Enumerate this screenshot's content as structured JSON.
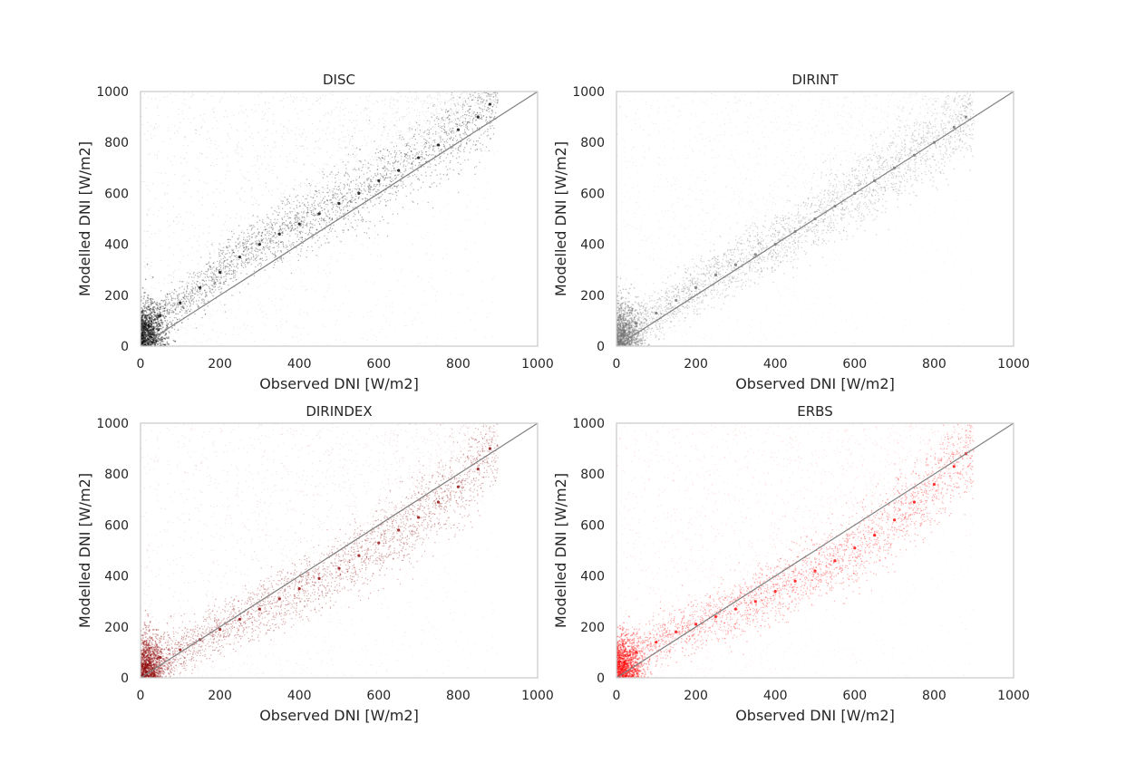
{
  "chart_data": [
    {
      "type": "scatter",
      "title": "DISC",
      "xlabel": "Observed DNI [W/m2]",
      "ylabel": "Modelled DNI [W/m2]",
      "xlim": [
        0,
        1000
      ],
      "ylim": [
        0,
        1000
      ],
      "xticks": [
        "0",
        "200",
        "400",
        "600",
        "800",
        "1000"
      ],
      "yticks": [
        "0",
        "200",
        "400",
        "600",
        "800",
        "1000"
      ],
      "color": "#000000",
      "grid": false,
      "reference_line": {
        "x": [
          0,
          1000
        ],
        "y": [
          0,
          1000
        ],
        "color": "#808080"
      },
      "series": [
        {
          "points": [
            [
              20,
              80
            ],
            [
              50,
              120
            ],
            [
              100,
              170
            ],
            [
              150,
              230
            ],
            [
              200,
              290
            ],
            [
              250,
              350
            ],
            [
              300,
              400
            ],
            [
              350,
              440
            ],
            [
              400,
              480
            ],
            [
              450,
              520
            ],
            [
              500,
              560
            ],
            [
              550,
              600
            ],
            [
              600,
              650
            ],
            [
              650,
              690
            ],
            [
              700,
              740
            ],
            [
              750,
              790
            ],
            [
              800,
              850
            ],
            [
              850,
              900
            ],
            [
              880,
              950
            ]
          ]
        }
      ]
    },
    {
      "type": "scatter",
      "title": "DIRINT",
      "xlabel": "Observed DNI [W/m2]",
      "ylabel": "Modelled DNI [W/m2]",
      "xlim": [
        0,
        1000
      ],
      "ylim": [
        0,
        1000
      ],
      "xticks": [
        "0",
        "200",
        "400",
        "600",
        "800",
        "1000"
      ],
      "yticks": [
        "0",
        "200",
        "400",
        "600",
        "800",
        "1000"
      ],
      "color": "#6e6e6e",
      "grid": false,
      "reference_line": {
        "x": [
          0,
          1000
        ],
        "y": [
          0,
          1000
        ],
        "color": "#808080"
      },
      "series": [
        {
          "points": [
            [
              20,
              60
            ],
            [
              50,
              90
            ],
            [
              100,
              130
            ],
            [
              150,
              180
            ],
            [
              200,
              230
            ],
            [
              250,
              280
            ],
            [
              300,
              320
            ],
            [
              350,
              360
            ],
            [
              400,
              400
            ],
            [
              450,
              450
            ],
            [
              500,
              500
            ],
            [
              550,
              550
            ],
            [
              600,
              600
            ],
            [
              650,
              650
            ],
            [
              700,
              700
            ],
            [
              750,
              750
            ],
            [
              800,
              800
            ],
            [
              850,
              860
            ],
            [
              880,
              900
            ]
          ]
        }
      ]
    },
    {
      "type": "scatter",
      "title": "DIRINDEX",
      "xlabel": "Observed DNI [W/m2]",
      "ylabel": "Modelled DNI [W/m2]",
      "xlim": [
        0,
        1000
      ],
      "ylim": [
        0,
        1000
      ],
      "xticks": [
        "0",
        "200",
        "400",
        "600",
        "800",
        "1000"
      ],
      "yticks": [
        "0",
        "200",
        "400",
        "600",
        "800",
        "1000"
      ],
      "color": "#8b0000",
      "grid": false,
      "reference_line": {
        "x": [
          0,
          1000
        ],
        "y": [
          0,
          1000
        ],
        "color": "#808080"
      },
      "series": [
        {
          "points": [
            [
              20,
              50
            ],
            [
              50,
              80
            ],
            [
              100,
              110
            ],
            [
              150,
              150
            ],
            [
              200,
              190
            ],
            [
              250,
              230
            ],
            [
              300,
              270
            ],
            [
              350,
              310
            ],
            [
              400,
              350
            ],
            [
              450,
              390
            ],
            [
              500,
              430
            ],
            [
              550,
              480
            ],
            [
              600,
              530
            ],
            [
              650,
              580
            ],
            [
              700,
              630
            ],
            [
              750,
              690
            ],
            [
              800,
              750
            ],
            [
              850,
              820
            ],
            [
              880,
              900
            ]
          ]
        }
      ]
    },
    {
      "type": "scatter",
      "title": "ERBS",
      "xlabel": "Observed DNI [W/m2]",
      "ylabel": "Modelled DNI [W/m2]",
      "xlim": [
        0,
        1000
      ],
      "ylim": [
        0,
        1000
      ],
      "xticks": [
        "0",
        "200",
        "400",
        "600",
        "800",
        "1000"
      ],
      "yticks": [
        "0",
        "200",
        "400",
        "600",
        "800",
        "1000"
      ],
      "color": "#ff0000",
      "grid": false,
      "reference_line": {
        "x": [
          0,
          1000
        ],
        "y": [
          0,
          1000
        ],
        "color": "#808080"
      },
      "series": [
        {
          "points": [
            [
              20,
              60
            ],
            [
              50,
              100
            ],
            [
              100,
              140
            ],
            [
              150,
              180
            ],
            [
              200,
              210
            ],
            [
              250,
              240
            ],
            [
              300,
              270
            ],
            [
              350,
              300
            ],
            [
              400,
              340
            ],
            [
              450,
              380
            ],
            [
              500,
              420
            ],
            [
              550,
              460
            ],
            [
              600,
              510
            ],
            [
              650,
              560
            ],
            [
              700,
              620
            ],
            [
              750,
              690
            ],
            [
              800,
              760
            ],
            [
              850,
              830
            ],
            [
              880,
              880
            ]
          ]
        }
      ]
    }
  ]
}
